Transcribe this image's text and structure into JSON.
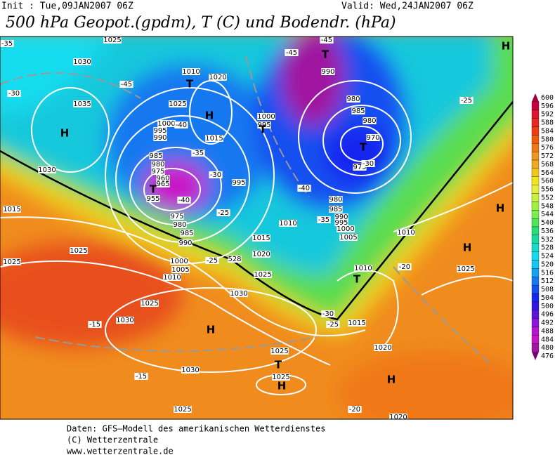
{
  "header": {
    "init": "Init : Tue,09JAN2007 06Z",
    "valid": "Valid: Wed,24JAN2007 06Z",
    "title": "500 hPa Geopot.(gpdm), T (C) und Bodendr. (hPa)"
  },
  "colorbar": {
    "ticks": [
      600,
      596,
      592,
      588,
      584,
      580,
      576,
      572,
      568,
      564,
      560,
      556,
      552,
      548,
      544,
      540,
      536,
      532,
      528,
      524,
      520,
      516,
      512,
      508,
      504,
      500,
      496,
      492,
      488,
      484,
      480,
      476
    ],
    "colors": [
      "#a0003c",
      "#c8003c",
      "#e0142c",
      "#e8281e",
      "#f03c14",
      "#f05a0a",
      "#f07814",
      "#f0961e",
      "#f0aa1e",
      "#f0c81e",
      "#f0e61e",
      "#e6f03c",
      "#c8f03c",
      "#a0f03c",
      "#78f050",
      "#50e65a",
      "#28dc78",
      "#14dca0",
      "#14dcc8",
      "#14dcf0",
      "#14c8f0",
      "#14a0f0",
      "#1478f0",
      "#1450f0",
      "#1428f0",
      "#3214e6",
      "#5a14dc",
      "#8c14dc",
      "#b414d2",
      "#c814c8",
      "#a014a0",
      "#780078"
    ]
  },
  "map_labels": [
    "1025",
    "1030",
    "1035",
    "H",
    "-35",
    "-30",
    "-45",
    "1010",
    "1020",
    "T",
    "H",
    "1025",
    "1000",
    "995",
    "990",
    "-40",
    "1015",
    "1000",
    "995",
    "T",
    "-35",
    "985",
    "980",
    "975",
    "960",
    "965",
    "T",
    "955",
    "-40",
    "-30",
    "995",
    "-25",
    "975",
    "980",
    "985",
    "990",
    "1000",
    "1005",
    "1010",
    "-25",
    "528",
    "1030",
    "1015",
    "1025",
    "1025",
    "1025",
    "1030",
    "1025",
    "1015",
    "1020",
    "1010",
    "-45",
    "-45",
    "T",
    "990",
    "980",
    "985",
    "980",
    "970",
    "T",
    "975",
    "-30",
    "-40",
    "980",
    "985",
    "990",
    "995",
    "1000",
    "1005",
    "1010",
    "-35",
    "1010",
    "T",
    "-20",
    "1025",
    "H",
    "H",
    "-25",
    "H",
    "-30",
    "-25",
    "1015",
    "1020",
    "H",
    "-15",
    "1030",
    "H",
    "1025",
    "T",
    "1030",
    "-15",
    "1025",
    "H",
    "1025",
    "-20",
    "1020"
  ],
  "footer": [
    "Daten: GFS—Modell des amerikanischen Wetterdienstes",
    "(C) Wetterzentrale",
    "www.wetterzentrale.de"
  ]
}
